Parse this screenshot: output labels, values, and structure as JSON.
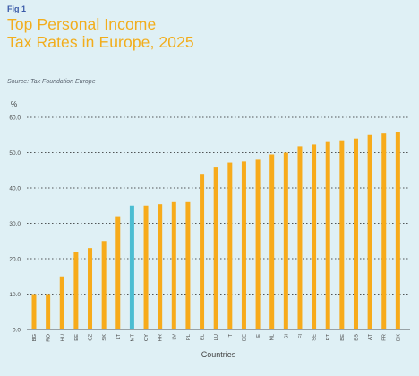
{
  "figure": {
    "label": "Fig 1",
    "title_line1": "Top Personal Income",
    "title_line2": "Tax Rates in Europe, 2025",
    "source": "Source:  Tax Foundation Europe"
  },
  "colors": {
    "bar": "#f7ab1b",
    "highlight": "#4bbdd2",
    "grid": "#222222",
    "title": "#f2ad1c"
  },
  "chart_data": {
    "type": "bar",
    "title": "Top Personal Income Tax Rates in Europe, 2025",
    "xlabel": "Countries",
    "ylabel": "%",
    "ylim": [
      0,
      60
    ],
    "yticks": [
      "0.0",
      "10.0",
      "20.0",
      "30.0",
      "40.0",
      "50.0",
      "60.0"
    ],
    "grid": true,
    "highlight_category": "MT",
    "categories": [
      "BG",
      "RO",
      "HU",
      "EE",
      "CZ",
      "SK",
      "LT",
      "MT",
      "CY",
      "HR",
      "LV",
      "PL",
      "EL",
      "LU",
      "IT",
      "DE",
      "IE",
      "NL",
      "SI",
      "FI",
      "SE",
      "PT",
      "BE",
      "ES",
      "AT",
      "FR",
      "DK"
    ],
    "values": [
      10,
      10,
      15,
      22,
      23,
      25,
      32,
      35,
      35,
      35.4,
      36,
      36,
      44,
      45.8,
      47.2,
      47.5,
      48,
      49.5,
      50,
      51.8,
      52.3,
      53,
      53.5,
      54,
      55,
      55.4,
      55.9
    ]
  }
}
